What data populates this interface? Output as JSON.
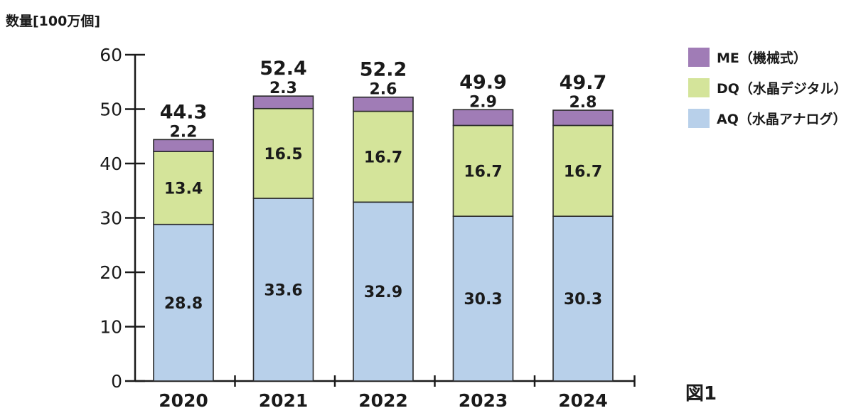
{
  "chart_data": {
    "type": "bar",
    "stacked": true,
    "ylabel": "数量[100万個]",
    "figure_label": "図1",
    "ylim": [
      0,
      60
    ],
    "yticks": [
      0,
      10,
      20,
      30,
      40,
      50,
      60
    ],
    "categories": [
      "2020",
      "2021",
      "2022",
      "2023",
      "2024"
    ],
    "series": [
      {
        "name": "AQ（水晶アナログ）",
        "color": "#b8d0ea",
        "values": [
          28.8,
          33.6,
          32.9,
          30.3,
          30.3
        ]
      },
      {
        "name": "DQ（水晶デジタル）",
        "color": "#d4e49a",
        "values": [
          13.4,
          16.5,
          16.7,
          16.7,
          16.7
        ]
      },
      {
        "name": "ME（機械式）",
        "color": "#a07cb6",
        "values": [
          2.2,
          2.3,
          2.6,
          2.9,
          2.8
        ]
      }
    ],
    "totals": [
      44.3,
      52.4,
      52.2,
      49.9,
      49.7
    ],
    "legend_order": [
      "ME（機械式）",
      "DQ（水晶デジタル）",
      "AQ（水晶アナログ）"
    ],
    "legend_position": "top-right",
    "grid": false
  }
}
